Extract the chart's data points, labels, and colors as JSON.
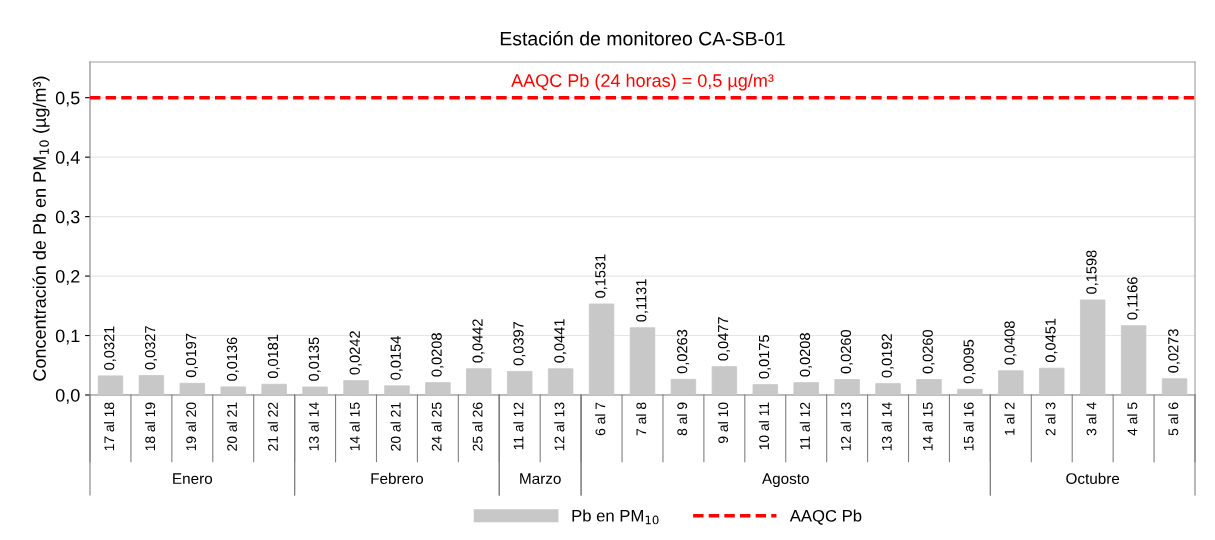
{
  "chart_data": {
    "type": "bar",
    "title": "Estación de monitoreo CA-SB-01",
    "ylabel": "Concentración de Pb en PM$_{10}$ (µg/m³)",
    "categories": [
      "17 al 18",
      "18 al 19",
      "19 al 20",
      "20 al 21",
      "21 al 22",
      "13 al 14",
      "14 al 15",
      "20 al 21",
      "24 al 25",
      "25 al 26",
      "11 al 12",
      "12 al 13",
      "6 al 7",
      "7 al 8",
      "8 al 9",
      "9 al 10",
      "10 al 11",
      "11 al 12",
      "12 al 13",
      "13 al 14",
      "14 al 15",
      "15 al 16",
      "1 al 2",
      "2 al 3",
      "3 al 4",
      "4 al 5",
      "5 al 6"
    ],
    "series": [
      {
        "name": "Pb en PM$_{10}$",
        "color": "#c8c8c8",
        "values": [
          0.0321,
          0.0327,
          0.0197,
          0.0136,
          0.0181,
          0.0135,
          0.0242,
          0.0154,
          0.0208,
          0.0442,
          0.0397,
          0.0441,
          0.1531,
          0.1131,
          0.0263,
          0.0477,
          0.0175,
          0.0208,
          0.026,
          0.0192,
          0.026,
          0.0095,
          0.0408,
          0.0451,
          0.1598,
          0.1166,
          0.0273
        ],
        "value_labels": [
          "0,0321",
          "0,0327",
          "0,0197",
          "0,0136",
          "0,0181",
          "0,0135",
          "0,0242",
          "0,0154",
          "0,0208",
          "0,0442",
          "0,0397",
          "0,0441",
          "0,1531",
          "0,1131",
          "0,0263",
          "0,0477",
          "0,0175",
          "0,0208",
          "0,0260",
          "0,0192",
          "0,0260",
          "0,0095",
          "0,0408",
          "0,0451",
          "0,1598",
          "0,1166",
          "0,0273"
        ]
      }
    ],
    "ylim": [
      0,
      0.56
    ],
    "yticks": [
      {
        "value": 0,
        "label": "0,0"
      },
      {
        "value": 0.1,
        "label": "0,1"
      },
      {
        "value": 0.2,
        "label": "0,2"
      },
      {
        "value": 0.3,
        "label": "0,3"
      },
      {
        "value": 0.4,
        "label": "0,4"
      },
      {
        "value": 0.5,
        "label": "0,5"
      }
    ],
    "ref_lines": [
      {
        "axis": "y",
        "value": 0.5,
        "label": "AAQC Pb",
        "color": "#ff0000",
        "line_style": "dashed"
      }
    ],
    "annotations": [
      {
        "text": "AAQC Pb (24 horas) = 0,5 µg/m³",
        "y": 0.5
      },
      "Enero",
      "Febrero",
      "Marzo",
      "Agosto",
      "Octubre"
    ],
    "grid": "y",
    "legend": "bottom"
  }
}
